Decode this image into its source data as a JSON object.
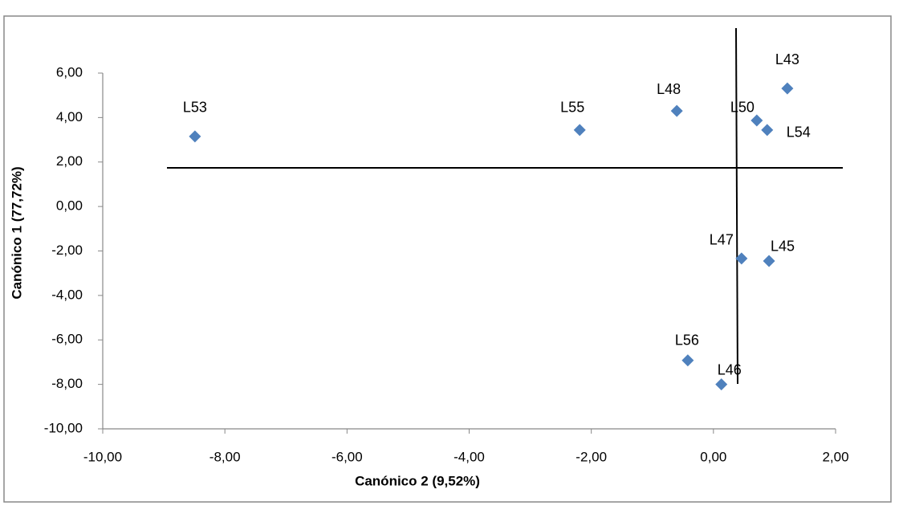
{
  "chart_data": {
    "type": "scatter",
    "x_label": "Canónico  2 (9,52%)",
    "y_label": "Canónico  1 (77,72%)",
    "labels": [
      "L53",
      "L55",
      "L48",
      "L50",
      "L54",
      "L43",
      "L47",
      "L45",
      "L56",
      "L46"
    ],
    "x": [
      -8.49,
      -2.19,
      -0.6,
      0.71,
      0.88,
      1.21,
      0.46,
      0.91,
      -0.42,
      0.13
    ],
    "values": [
      3.15,
      3.44,
      4.3,
      3.87,
      3.44,
      5.31,
      -2.34,
      -2.45,
      -6.92,
      -8.0
    ],
    "color": "#4f81bd",
    "xlim": [
      -10,
      2
    ],
    "ylim": [
      -10,
      6
    ],
    "xticks": [
      {
        "value": -10,
        "label": "-10,00"
      },
      {
        "value": -8,
        "label": "-8,00"
      },
      {
        "value": -6,
        "label": "-6,00"
      },
      {
        "value": -4,
        "label": "-4,00"
      },
      {
        "value": -2,
        "label": "-2,00"
      },
      {
        "value": 0,
        "label": "0,00"
      },
      {
        "value": 2,
        "label": "2,00"
      }
    ],
    "yticks": [
      {
        "value": -10,
        "label": "-10,00"
      },
      {
        "value": -8,
        "label": "-8,00"
      },
      {
        "value": -6,
        "label": "-6,00"
      },
      {
        "value": -4,
        "label": "-4,00"
      },
      {
        "value": -2,
        "label": "-2,00"
      },
      {
        "value": 0,
        "label": "0,00"
      },
      {
        "value": 2,
        "label": "2,00"
      },
      {
        "value": 4,
        "label": "4,00"
      },
      {
        "value": 6,
        "label": "6,00"
      }
    ]
  }
}
